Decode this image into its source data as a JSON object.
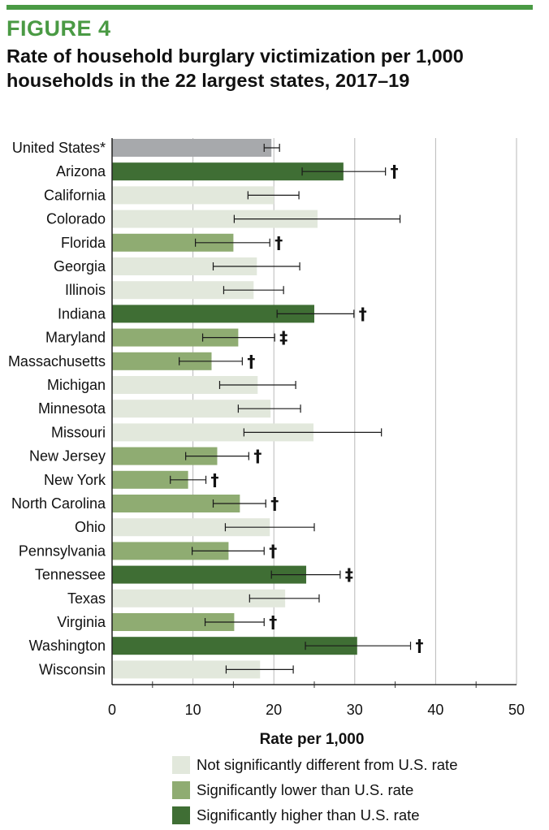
{
  "figure_label": "FIGURE 4",
  "title": "Rate of household burglary victimization per 1,000 households in the 22 largest states, 2017–19",
  "colors": {
    "us": "#a7a9ac",
    "not_sig": "#e2e8dc",
    "lower": "#8fac72",
    "higher": "#3f6e34",
    "accent": "#4a9a44",
    "grid": "#b8b8b8"
  },
  "legend": [
    {
      "key": "not_sig",
      "label": "Not significantly different from U.S. rate"
    },
    {
      "key": "lower",
      "label": "Significantly lower than U.S. rate"
    },
    {
      "key": "higher",
      "label": "Significantly higher than U.S. rate"
    }
  ],
  "chart_data": {
    "type": "bar",
    "orientation": "horizontal",
    "xlabel": "Rate per 1,000",
    "xlim": [
      0,
      50
    ],
    "xticks": [
      0,
      10,
      20,
      30,
      40,
      50
    ],
    "grid": true,
    "series": [
      {
        "state": "United States*",
        "value": 19.7,
        "ci": [
          18.8,
          20.7
        ],
        "group": "us",
        "mark": ""
      },
      {
        "state": "Arizona",
        "value": 28.6,
        "ci": [
          23.5,
          33.8
        ],
        "group": "higher",
        "mark": "†"
      },
      {
        "state": "California",
        "value": 20.0,
        "ci": [
          16.8,
          23.1
        ],
        "group": "not_sig",
        "mark": ""
      },
      {
        "state": "Colorado",
        "value": 25.4,
        "ci": [
          15.1,
          35.6
        ],
        "group": "not_sig",
        "mark": ""
      },
      {
        "state": "Florida",
        "value": 15.0,
        "ci": [
          10.3,
          19.5
        ],
        "group": "lower",
        "mark": "†"
      },
      {
        "state": "Georgia",
        "value": 17.9,
        "ci": [
          12.5,
          23.2
        ],
        "group": "not_sig",
        "mark": ""
      },
      {
        "state": "Illinois",
        "value": 17.5,
        "ci": [
          13.8,
          21.2
        ],
        "group": "not_sig",
        "mark": ""
      },
      {
        "state": "Indiana",
        "value": 25.0,
        "ci": [
          20.4,
          29.9
        ],
        "group": "higher",
        "mark": "†"
      },
      {
        "state": "Maryland",
        "value": 15.6,
        "ci": [
          11.2,
          20.1
        ],
        "group": "lower",
        "mark": "‡"
      },
      {
        "state": "Massachusetts",
        "value": 12.3,
        "ci": [
          8.3,
          16.1
        ],
        "group": "lower",
        "mark": "†"
      },
      {
        "state": "Michigan",
        "value": 18.0,
        "ci": [
          13.3,
          22.7
        ],
        "group": "not_sig",
        "mark": ""
      },
      {
        "state": "Minnesota",
        "value": 19.6,
        "ci": [
          15.6,
          23.3
        ],
        "group": "not_sig",
        "mark": ""
      },
      {
        "state": "Missouri",
        "value": 24.9,
        "ci": [
          16.3,
          33.3
        ],
        "group": "not_sig",
        "mark": ""
      },
      {
        "state": "New Jersey",
        "value": 13.0,
        "ci": [
          9.1,
          16.9
        ],
        "group": "lower",
        "mark": "†"
      },
      {
        "state": "New York",
        "value": 9.4,
        "ci": [
          7.2,
          11.6
        ],
        "group": "lower",
        "mark": "†"
      },
      {
        "state": "North Carolina",
        "value": 15.8,
        "ci": [
          12.5,
          19.0
        ],
        "group": "lower",
        "mark": "†"
      },
      {
        "state": "Ohio",
        "value": 19.5,
        "ci": [
          14.0,
          25.0
        ],
        "group": "not_sig",
        "mark": ""
      },
      {
        "state": "Pennsylvania",
        "value": 14.4,
        "ci": [
          9.9,
          18.8
        ],
        "group": "lower",
        "mark": "†"
      },
      {
        "state": "Tennessee",
        "value": 24.0,
        "ci": [
          19.7,
          28.2
        ],
        "group": "higher",
        "mark": "‡"
      },
      {
        "state": "Texas",
        "value": 21.4,
        "ci": [
          17.0,
          25.6
        ],
        "group": "not_sig",
        "mark": ""
      },
      {
        "state": "Virginia",
        "value": 15.1,
        "ci": [
          11.5,
          18.8
        ],
        "group": "lower",
        "mark": "†"
      },
      {
        "state": "Washington",
        "value": 30.3,
        "ci": [
          23.9,
          36.9
        ],
        "group": "higher",
        "mark": "†"
      },
      {
        "state": "Wisconsin",
        "value": 18.3,
        "ci": [
          14.1,
          22.4
        ],
        "group": "not_sig",
        "mark": ""
      }
    ]
  }
}
